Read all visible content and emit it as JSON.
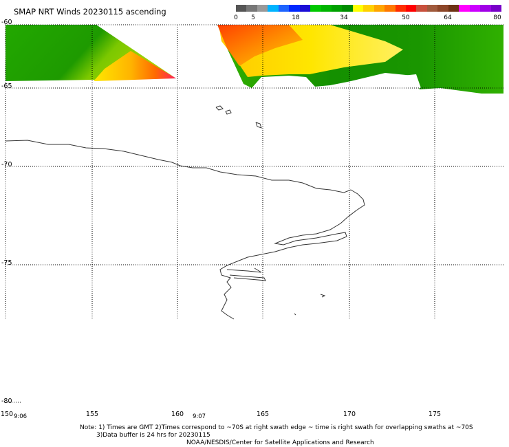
{
  "title": "SMAP NRT Winds 20230115 ascending",
  "colorbar": {
    "labels": [
      "0",
      "5",
      "18",
      "34",
      "50",
      "64",
      "80"
    ],
    "segments": [
      "#555555",
      "#777777",
      "#999999",
      "#00b4ff",
      "#1e64ff",
      "#0028ff",
      "#1a0ed6",
      "#00c800",
      "#00b400",
      "#00a000",
      "#008c00",
      "#ffff00",
      "#ffd000",
      "#ffa500",
      "#ff7800",
      "#ff2d00",
      "#ff0000",
      "#c8503c",
      "#a05a3c",
      "#8c4628",
      "#6e3214",
      "#ff00ff",
      "#cc00ff",
      "#a000e6",
      "#7800c8"
    ]
  },
  "axes": {
    "lat_labels": [
      "-60",
      "-65",
      "-70",
      "-75",
      "-80"
    ],
    "lon_labels": [
      "150",
      "155",
      "160",
      "165",
      "170",
      "175"
    ]
  },
  "swath_times": [
    "9:06",
    "9:07"
  ],
  "notes": {
    "line1": "Note: 1) Times are GMT 2)Times correspond to ~70S at right swath edge ~ time is right swath for overlapping swaths at ~70S",
    "line2": "3)Data buffer is 24 hrs for 20230115",
    "line3": "NOAA/NESDIS/Center for Satellite Applications and Research"
  }
}
